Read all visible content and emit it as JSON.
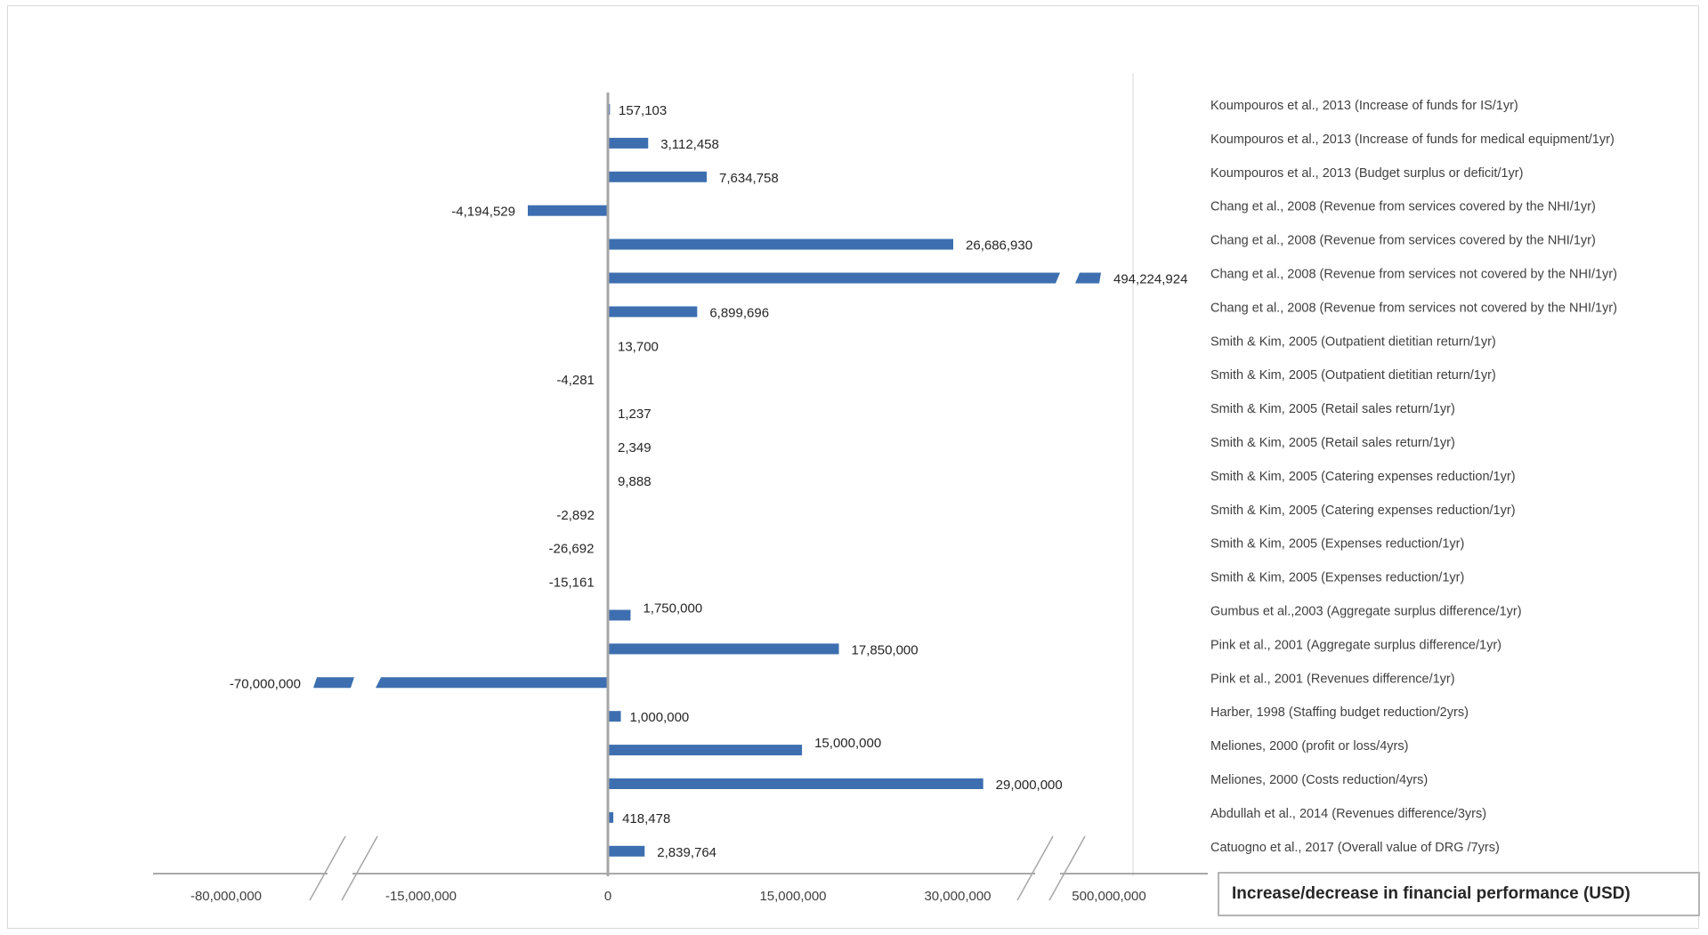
{
  "chart_data": {
    "type": "bar",
    "orientation": "horizontal",
    "xlabel": "Increase/decrease in financial performance (USD)",
    "x_tick_labels": [
      "-80,000,000",
      "-15,000,000",
      "0",
      "15,000,000",
      "30,000,000",
      "500,000,000"
    ],
    "axis_breaks": "broken x-axis between -80,000,000 and -15,000,000 and between 30,000,000 and 500,000,000",
    "bar_color": "#3d6fb0",
    "categories": [
      "Koumpouros et al., 2013 (Increase of funds for IS/1yr)",
      "Koumpouros et al., 2013 (Increase of funds for medical equipment/1yr)",
      "Koumpouros et al., 2013 (Budget surplus or deficit/1yr)",
      "Chang et al., 2008 (Revenue from services covered by the NHI/1yr)",
      "Chang et al., 2008 (Revenue from services covered by the NHI/1yr)",
      "Chang et al., 2008 (Revenue from services not covered by the NHI/1yr)",
      "Chang et al., 2008 (Revenue from services not covered by the NHI/1yr)",
      "Smith & Kim, 2005 (Outpatient dietitian return/1yr)",
      "Smith & Kim, 2005 (Outpatient dietitian return/1yr)",
      "Smith & Kim, 2005 (Retail sales return/1yr)",
      "Smith & Kim, 2005 (Retail sales return/1yr)",
      "Smith & Kim, 2005 (Catering expenses reduction/1yr)",
      "Smith & Kim, 2005 (Catering expenses reduction/1yr)",
      "Smith & Kim, 2005 (Expenses reduction/1yr)",
      "Smith & Kim, 2005 (Expenses reduction/1yr)",
      "Gumbus et al.,2003 (Aggregate surplus difference/1yr)",
      "Pink et al., 2001 (Aggregate surplus difference/1yr)",
      "Pink et al., 2001 (Revenues difference/1yr)",
      "Harber, 1998 (Staffing budget reduction/2yrs)",
      "Meliones, 2000 (profit or loss/4yrs)",
      "Meliones, 2000 (Costs reduction/4yrs)",
      "Abdullah et al., 2014 (Revenues difference/3yrs)",
      "Catuogno et al., 2017 (Overall value of DRG /7yrs)"
    ],
    "values": [
      157103,
      3112458,
      7634758,
      -4194529,
      26686930,
      494224924,
      6899696,
      13700,
      -4281,
      1237,
      2349,
      9888,
      -2892,
      -26692,
      -15161,
      1750000,
      17850000,
      -70000000,
      1000000,
      15000000,
      29000000,
      418478,
      2839764
    ],
    "value_labels": [
      "157,103",
      "3,112,458",
      "7,634,758",
      "-4,194,529",
      "26,686,930",
      "494,224,924",
      "6,899,696",
      "13,700",
      "-4,281",
      "1,237",
      "2,349",
      "9,888",
      "-2,892",
      "-26,692",
      "-15,161",
      "1,750,000",
      "17,850,000",
      "-70,000,000",
      "1,000,000",
      "15,000,000",
      "29,000,000",
      "418,478",
      "2,839,764"
    ]
  }
}
